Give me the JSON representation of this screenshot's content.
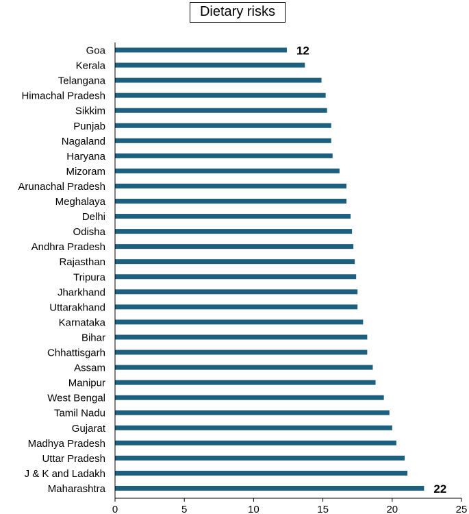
{
  "chart_data": {
    "type": "bar",
    "orientation": "horizontal",
    "title": "Dietary risks",
    "categories": [
      "Goa",
      "Kerala",
      "Telangana",
      "Himachal Pradesh",
      "Sikkim",
      "Punjab",
      "Nagaland",
      "Haryana",
      "Mizoram",
      "Arunachal Pradesh",
      "Meghalaya",
      "Delhi",
      "Odisha",
      "Andhra Pradesh",
      "Rajasthan",
      "Tripura",
      "Jharkhand",
      "Uttarakhand",
      "Karnataka",
      "Bihar",
      "Chhattisgarh",
      "Assam",
      "Manipur",
      "West Bengal",
      "Tamil Nadu",
      "Gujarat",
      "Madhya Pradesh",
      "Uttar Pradesh",
      "J & K and Ladakh",
      "Maharashtra"
    ],
    "values": [
      12.4,
      13.7,
      14.9,
      15.2,
      15.3,
      15.6,
      15.6,
      15.7,
      16.2,
      16.7,
      16.7,
      17.0,
      17.1,
      17.2,
      17.3,
      17.4,
      17.5,
      17.5,
      17.9,
      18.2,
      18.2,
      18.6,
      18.8,
      19.4,
      19.8,
      20.0,
      20.3,
      20.9,
      21.1,
      22.3
    ],
    "data_labels": [
      {
        "category": "Goa",
        "text": "12"
      },
      {
        "category": "Maharashtra",
        "text": "22"
      }
    ],
    "xlim": [
      0,
      25
    ],
    "xticks": [
      0,
      5,
      10,
      15,
      20,
      25
    ],
    "xlabel": "",
    "ylabel": "",
    "grid": false,
    "legend": "none",
    "bar_color": "#1c5f7e"
  }
}
